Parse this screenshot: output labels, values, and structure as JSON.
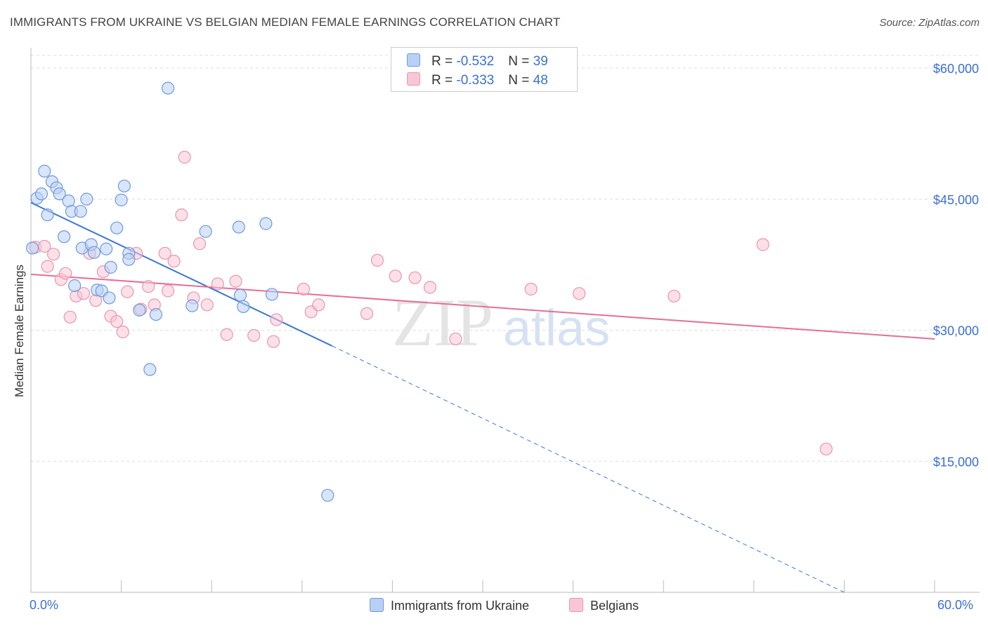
{
  "title": "IMMIGRANTS FROM UKRAINE VS BELGIAN MEDIAN FEMALE EARNINGS CORRELATION CHART",
  "source": "Source: ZipAtlas.com",
  "watermark": {
    "zip": "ZIP",
    "atlas": "atlas"
  },
  "legend": {
    "ukraine": {
      "r_label": "R = ",
      "r_value": "-0.532",
      "n_label": "N = ",
      "n_value": "39"
    },
    "belgians": {
      "r_label": "R = ",
      "r_value": "-0.333",
      "n_label": "N = ",
      "n_value": "48"
    }
  },
  "bottom_legend": {
    "ukraine": "Immigrants from Ukraine",
    "belgians": "Belgians"
  },
  "colors": {
    "ukraine_fill": "#b8d0f5",
    "ukraine_stroke": "#6f9ad9",
    "ukraine_line": "#3a78d6",
    "belgians_fill": "#f9c6d6",
    "belgians_stroke": "#eb94b1",
    "belgians_line": "#e46f96",
    "axis_text": "#3a6fd8",
    "grid": "#dddddd"
  },
  "chart_data": {
    "type": "scatter",
    "title": "IMMIGRANTS FROM UKRAINE VS BELGIAN MEDIAN FEMALE EARNINGS CORRELATION CHART",
    "xlabel": "",
    "ylabel": "Median Female Earnings",
    "xlim": [
      0,
      60
    ],
    "ylim": [
      0,
      63000
    ],
    "x_tick_labels": [
      {
        "value": 0,
        "label": "0.0%"
      },
      {
        "value": 60,
        "label": "60.0%"
      }
    ],
    "y_ticks": [
      {
        "value": 15000,
        "label": "$15,000"
      },
      {
        "value": 30000,
        "label": "$30,000"
      },
      {
        "value": 45000,
        "label": "$45,000"
      },
      {
        "value": 60000,
        "label": "$60,000"
      }
    ],
    "series": [
      {
        "name": "Immigrants from Ukraine",
        "r": -0.532,
        "n": 39,
        "points": [
          [
            0.1,
            39400
          ],
          [
            0.4,
            45100
          ],
          [
            0.7,
            45600
          ],
          [
            0.9,
            48200
          ],
          [
            1.1,
            43200
          ],
          [
            1.4,
            47000
          ],
          [
            1.7,
            46300
          ],
          [
            1.9,
            45600
          ],
          [
            2.2,
            40700
          ],
          [
            2.5,
            44800
          ],
          [
            2.7,
            43600
          ],
          [
            2.9,
            35100
          ],
          [
            3.3,
            43600
          ],
          [
            3.4,
            39400
          ],
          [
            3.7,
            45000
          ],
          [
            4.0,
            39800
          ],
          [
            4.2,
            38900
          ],
          [
            4.4,
            34600
          ],
          [
            4.7,
            34500
          ],
          [
            5.0,
            39300
          ],
          [
            5.2,
            33700
          ],
          [
            5.3,
            37200
          ],
          [
            5.7,
            41700
          ],
          [
            6.0,
            44900
          ],
          [
            6.2,
            46500
          ],
          [
            6.5,
            38800
          ],
          [
            6.5,
            38100
          ],
          [
            7.2,
            32300
          ],
          [
            7.9,
            25500
          ],
          [
            8.3,
            31800
          ],
          [
            9.1,
            57700
          ],
          [
            10.7,
            32800
          ],
          [
            11.6,
            41300
          ],
          [
            13.8,
            41800
          ],
          [
            13.9,
            34000
          ],
          [
            14.1,
            32700
          ],
          [
            15.6,
            42200
          ],
          [
            16.0,
            34100
          ],
          [
            19.7,
            11100
          ]
        ],
        "trend": {
          "x0": 0.0,
          "y0": 44600,
          "x1": 20.0,
          "y1": 28200,
          "dashed_to_x": 54.0,
          "dashed_to_y": 0
        }
      },
      {
        "name": "Belgians",
        "r": -0.333,
        "n": 48,
        "points": [
          [
            0.3,
            39500
          ],
          [
            0.9,
            39600
          ],
          [
            1.1,
            37300
          ],
          [
            1.5,
            38700
          ],
          [
            2.0,
            35800
          ],
          [
            2.3,
            36500
          ],
          [
            2.6,
            31500
          ],
          [
            3.0,
            33900
          ],
          [
            3.5,
            34200
          ],
          [
            3.9,
            38800
          ],
          [
            4.3,
            33400
          ],
          [
            4.8,
            36700
          ],
          [
            5.3,
            31600
          ],
          [
            5.7,
            31000
          ],
          [
            6.1,
            29800
          ],
          [
            6.4,
            34400
          ],
          [
            7.0,
            38800
          ],
          [
            7.3,
            32400
          ],
          [
            7.8,
            35000
          ],
          [
            8.2,
            32900
          ],
          [
            8.9,
            38800
          ],
          [
            9.1,
            34500
          ],
          [
            9.5,
            37900
          ],
          [
            10.0,
            43200
          ],
          [
            10.2,
            49800
          ],
          [
            10.8,
            33700
          ],
          [
            11.2,
            39900
          ],
          [
            11.7,
            32900
          ],
          [
            12.4,
            35300
          ],
          [
            13.0,
            29500
          ],
          [
            13.6,
            35600
          ],
          [
            14.8,
            29400
          ],
          [
            16.1,
            28700
          ],
          [
            16.3,
            31200
          ],
          [
            18.1,
            34700
          ],
          [
            18.6,
            32100
          ],
          [
            19.1,
            32900
          ],
          [
            22.3,
            31900
          ],
          [
            23.0,
            38000
          ],
          [
            24.2,
            36200
          ],
          [
            25.5,
            36000
          ],
          [
            26.5,
            34900
          ],
          [
            28.2,
            29000
          ],
          [
            33.2,
            34700
          ],
          [
            36.4,
            34200
          ],
          [
            42.7,
            33900
          ],
          [
            48.6,
            39800
          ],
          [
            52.8,
            16400
          ]
        ],
        "trend": {
          "x0": 0.0,
          "y0": 36400,
          "x1": 60.0,
          "y1": 29000
        }
      }
    ]
  }
}
